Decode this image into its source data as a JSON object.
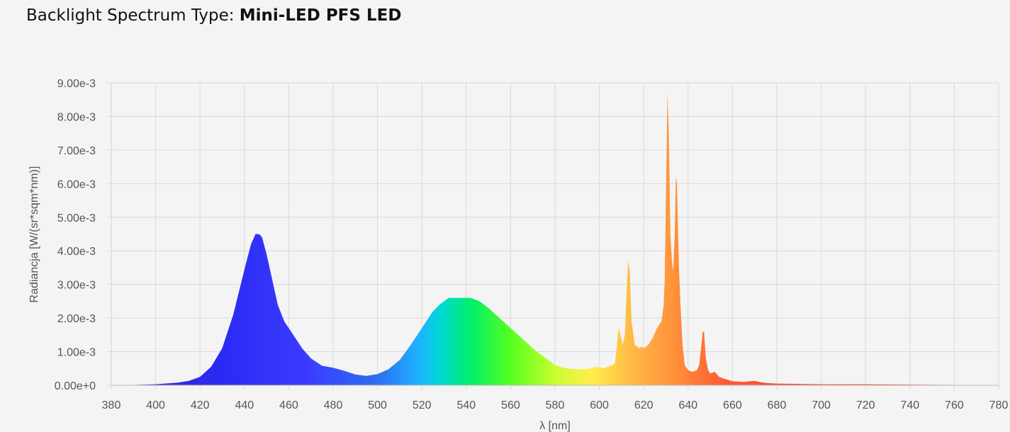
{
  "header": {
    "label": "Backlight Spectrum Type:",
    "value": "Mini-LED PFS LED"
  },
  "chart_data": {
    "type": "area",
    "xlabel": "λ [nm]",
    "ylabel": "Radiancja [W/(sr*sqm*nm)]",
    "xlim": [
      380,
      780
    ],
    "ylim": [
      0,
      0.009
    ],
    "x_ticks": [
      380,
      400,
      420,
      440,
      460,
      480,
      500,
      520,
      540,
      560,
      580,
      600,
      620,
      640,
      660,
      680,
      700,
      720,
      740,
      760,
      780
    ],
    "y_ticks": [
      0,
      0.001,
      0.002,
      0.003,
      0.004,
      0.005,
      0.006,
      0.007,
      0.008,
      0.009
    ],
    "x_tick_labels": [
      "380",
      "400",
      "420",
      "440",
      "460",
      "480",
      "500",
      "520",
      "540",
      "560",
      "580",
      "600",
      "620",
      "640",
      "660",
      "680",
      "700",
      "720",
      "740",
      "760",
      "780"
    ],
    "y_tick_labels": [
      "0.00e+0",
      "1.00e-3",
      "2.00e-3",
      "3.00e-3",
      "4.00e-3",
      "5.00e-3",
      "6.00e-3",
      "7.00e-3",
      "8.00e-3",
      "9.00e-3"
    ],
    "grid": true,
    "fill": "wavelength-colored spectrum",
    "x": [
      380,
      390,
      400,
      410,
      415,
      420,
      425,
      430,
      435,
      438,
      441,
      443,
      445,
      446,
      447,
      448,
      450,
      452,
      455,
      458,
      462,
      466,
      470,
      475,
      480,
      485,
      490,
      495,
      500,
      505,
      510,
      515,
      520,
      525,
      528,
      532,
      535,
      538,
      542,
      546,
      550,
      555,
      560,
      565,
      570,
      575,
      580,
      585,
      590,
      595,
      597,
      599,
      602,
      604,
      606,
      607,
      608,
      608.6,
      609.5,
      610.5,
      611.5,
      612.3,
      613,
      613.7,
      614.5,
      616,
      618,
      619,
      620,
      622,
      624,
      626,
      628,
      629,
      629.5,
      630,
      630.7,
      631.3,
      632,
      632.7,
      633.3,
      634,
      634.5,
      635,
      635.5,
      636,
      636.7,
      637.5,
      638.5,
      640,
      642,
      644,
      645,
      646,
      646.6,
      647.2,
      648,
      649,
      650,
      652,
      654,
      656,
      660,
      665,
      668,
      670,
      672,
      675,
      680,
      690,
      700,
      720,
      740,
      760,
      780
    ],
    "values": [
      0.0,
      1e-05,
      3e-05,
      8e-05,
      0.00013,
      0.00025,
      0.00055,
      0.0011,
      0.0021,
      0.0029,
      0.0037,
      0.0042,
      0.0045,
      0.0045,
      0.00448,
      0.0044,
      0.0039,
      0.0033,
      0.0024,
      0.0019,
      0.0015,
      0.0011,
      0.0008,
      0.00058,
      0.00052,
      0.00043,
      0.00032,
      0.00028,
      0.00033,
      0.00048,
      0.00075,
      0.0012,
      0.0017,
      0.0022,
      0.0024,
      0.0026,
      0.0026,
      0.0026,
      0.0026,
      0.0025,
      0.0023,
      0.002,
      0.0017,
      0.0014,
      0.0011,
      0.00085,
      0.0006,
      0.0005,
      0.00048,
      0.00048,
      0.00052,
      0.00055,
      0.0005,
      0.00055,
      0.0006,
      0.00065,
      0.0012,
      0.0017,
      0.0015,
      0.0012,
      0.0015,
      0.0028,
      0.0037,
      0.0034,
      0.0019,
      0.0012,
      0.0011,
      0.00115,
      0.0011,
      0.0012,
      0.0014,
      0.0017,
      0.0019,
      0.0024,
      0.0032,
      0.0055,
      0.0087,
      0.0075,
      0.0045,
      0.0037,
      0.0034,
      0.0045,
      0.0062,
      0.006,
      0.0045,
      0.0033,
      0.0022,
      0.0012,
      0.0006,
      0.00045,
      0.0004,
      0.00045,
      0.0006,
      0.0012,
      0.0016,
      0.0016,
      0.0008,
      0.00045,
      0.00035,
      0.0004,
      0.00025,
      0.0002,
      0.00012,
      0.0001,
      0.00012,
      0.00013,
      0.0001,
      7e-05,
      5e-05,
      4e-05,
      3e-05,
      3e-05,
      2e-05,
      1e-05,
      0.0
    ]
  }
}
